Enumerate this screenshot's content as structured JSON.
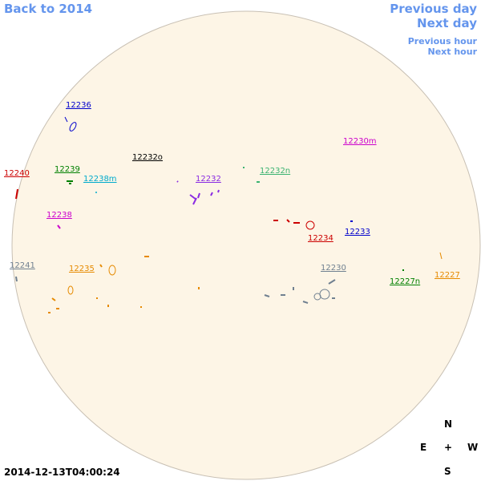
{
  "nav": {
    "back": "Back to 2014",
    "previous_day": "Previous day",
    "next_day": "Next day",
    "previous_hour": "Previous hour",
    "next_hour": "Next hour"
  },
  "regions": [
    "12236",
    "12240",
    "12239",
    "12238m",
    "12232o",
    "12232",
    "12232n",
    "12230m",
    "12238",
    "12234",
    "12233",
    "12241",
    "12235",
    "12230",
    "12227n",
    "12227"
  ],
  "compass": {
    "north": "N",
    "east": "E",
    "center": "+",
    "west": "W",
    "south": "S"
  },
  "timestamp": "2014-12-13T04:00:24"
}
